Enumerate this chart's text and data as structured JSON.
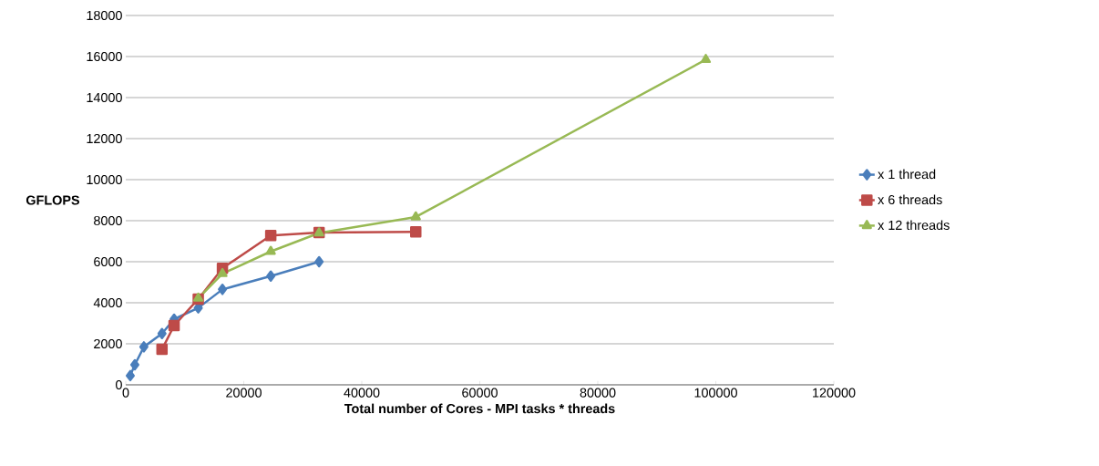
{
  "chart_data": {
    "type": "line",
    "xlabel": "Total number of Cores - MPI tasks * threads",
    "ylabel": "GFLOPS",
    "xlim": [
      0,
      120000
    ],
    "xticks": [
      0,
      20000,
      40000,
      60000,
      80000,
      100000,
      120000
    ],
    "ylim": [
      0,
      18000
    ],
    "yticks": [
      0,
      2000,
      4000,
      6000,
      8000,
      10000,
      12000,
      14000,
      16000,
      18000
    ],
    "grid": "y",
    "legend": "right",
    "series": [
      {
        "name": "x 1 thread",
        "color": "#4a7ebb",
        "marker": "diamond",
        "x": [
          768,
          1536,
          3072,
          6144,
          8192,
          12288,
          16384,
          24576,
          32768
        ],
        "values": [
          450,
          980,
          1850,
          2500,
          3200,
          3750,
          4650,
          5300,
          6000
        ]
      },
      {
        "name": "x 6 threads",
        "color": "#be4b48",
        "marker": "square",
        "x": [
          6144,
          8192,
          12288,
          16384,
          24576,
          32768,
          49152
        ],
        "values": [
          1730,
          2890,
          4180,
          5680,
          7280,
          7420,
          7450
        ]
      },
      {
        "name": "x 12 threads",
        "color": "#98b954",
        "marker": "triangle",
        "x": [
          12288,
          16384,
          24576,
          32768,
          49152,
          98304
        ],
        "values": [
          4220,
          5420,
          6500,
          7400,
          8180,
          15850
        ]
      }
    ]
  }
}
